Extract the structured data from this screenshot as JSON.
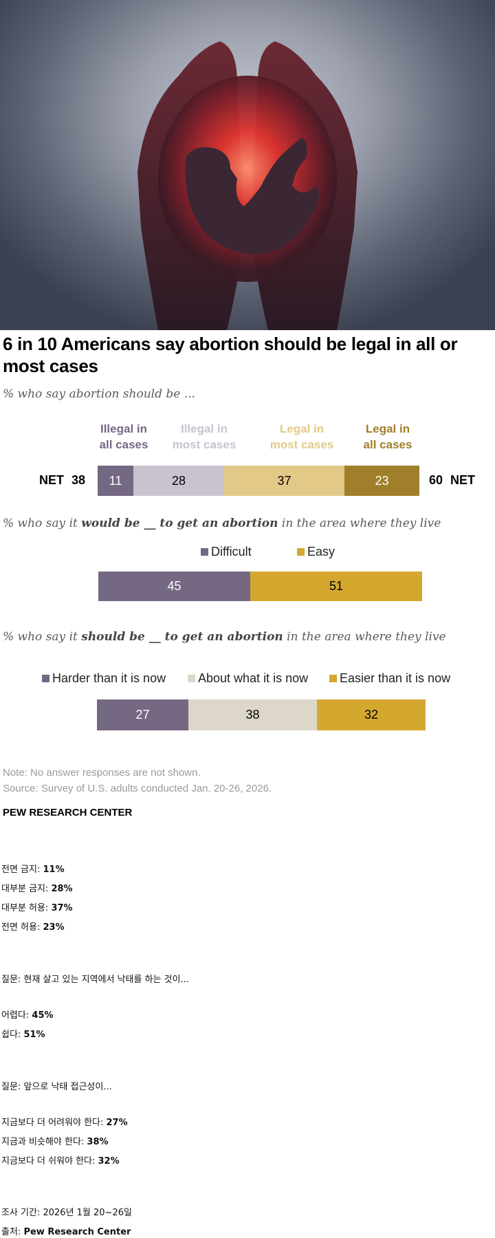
{
  "hero_image": {
    "description": "cupped-hands-holding-fetus-silhouette-photo"
  },
  "title": "6 in 10 Americans say abortion should be legal in all or most cases",
  "chart_data": [
    {
      "type": "bar",
      "orientation": "horizontal-stacked",
      "subtitle": "% who say abortion should be ...",
      "categories": [
        "Illegal in all cases",
        "Illegal in most cases",
        "Legal in most cases",
        "Legal in all cases"
      ],
      "category_lines": [
        [
          "Illegal in",
          "all cases"
        ],
        [
          "Illegal in",
          "most cases"
        ],
        [
          "Legal in",
          "most cases"
        ],
        [
          "Legal in",
          "all cases"
        ]
      ],
      "values": [
        11,
        28,
        37,
        23
      ],
      "colors": [
        "#756883",
        "#c8c3cf",
        "#e3c987",
        "#a07f2a"
      ],
      "label_colors": [
        "#ffffff",
        "#000000",
        "#000000",
        "#ffffff"
      ],
      "header_colors": [
        "#756883",
        "#c8c3cf",
        "#e3c987",
        "#a07f2a"
      ],
      "net_left": {
        "label": "NET",
        "value": 38
      },
      "net_right": {
        "label": "NET",
        "value": 60
      }
    },
    {
      "type": "bar",
      "orientation": "horizontal-stacked",
      "subtitle_parts": [
        "% who say it ",
        "would be __ to get an abortion",
        " in the area where they live"
      ],
      "categories": [
        "Difficult",
        "Easy"
      ],
      "values": [
        45,
        51
      ],
      "colors": [
        "#756883",
        "#d4a82f"
      ],
      "label_colors": [
        "#ffffff",
        "#000000"
      ]
    },
    {
      "type": "bar",
      "orientation": "horizontal-stacked",
      "subtitle_parts": [
        "% who say it ",
        "should be __  to get an abortion",
        " in the area where they live"
      ],
      "categories": [
        "Harder than it is now",
        "About what it is now",
        "Easier than it is now"
      ],
      "values": [
        27,
        38,
        32
      ],
      "colors": [
        "#756883",
        "#dcd7c9",
        "#d4a82f"
      ],
      "label_colors": [
        "#ffffff",
        "#000000",
        "#000000"
      ]
    }
  ],
  "note": "Note: No answer responses are not shown.",
  "source": "Source: Survey of U.S. adults conducted Jan. 20-26, 2026.",
  "brand": "PEW RESEARCH CENTER",
  "korean_summary": {
    "q1_items": [
      {
        "label": "전면 금지: ",
        "value": "11%"
      },
      {
        "label": "대부분 금지: ",
        "value": "28%"
      },
      {
        "label": "대부분 허용: ",
        "value": "37%"
      },
      {
        "label": "전면 허용: ",
        "value": "23%"
      }
    ],
    "q2_question": "질문: 현재 살고 있는 지역에서 낙태를 하는 것이...",
    "q2_items": [
      {
        "label": "어렵다: ",
        "value": "45%"
      },
      {
        "label": "쉽다: ",
        "value": "51%"
      }
    ],
    "q3_question": "질문: 앞으로 낙태 접근성이...",
    "q3_items": [
      {
        "label": "지금보다 더 어려워야 한다: ",
        "value": "27%"
      },
      {
        "label": "지금과 비슷해야 한다: ",
        "value": "38%"
      },
      {
        "label": "지금보다 더 쉬워야 한다: ",
        "value": "32%"
      }
    ],
    "period": "조사 기간: 2026년 1월 20~26일",
    "source_label": "출처: ",
    "source_value": "Pew Research Center"
  }
}
